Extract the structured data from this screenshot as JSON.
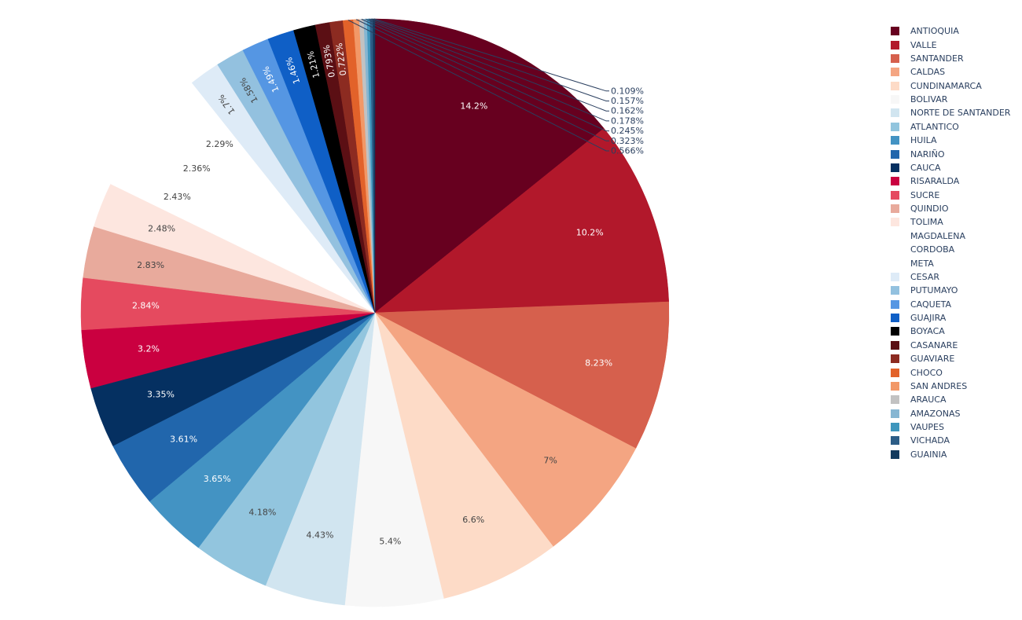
{
  "chart_data": {
    "type": "pie",
    "title": "",
    "legend_position": "right",
    "sort": "descending",
    "direction": "clockwise",
    "slices": [
      {
        "label": "ANTIOQUIA",
        "value": 14.2,
        "text": "14.2%",
        "color": "#67001f"
      },
      {
        "label": "VALLE",
        "value": 10.2,
        "text": "10.2%",
        "color": "#b2182b"
      },
      {
        "label": "SANTANDER",
        "value": 8.23,
        "text": "8.23%",
        "color": "#d6604d"
      },
      {
        "label": "CALDAS",
        "value": 7,
        "text": "7%",
        "color": "#f4a582"
      },
      {
        "label": "CUNDINAMARCA",
        "value": 6.6,
        "text": "6.6%",
        "color": "#fddbc7"
      },
      {
        "label": "BOLIVAR",
        "value": 5.4,
        "text": "5.4%",
        "color": "#f7f7f7"
      },
      {
        "label": "NORTE DE SANTANDER",
        "value": 4.43,
        "text": "4.43%",
        "color": "#d1e5f0"
      },
      {
        "label": "ATLANTICO",
        "value": 4.18,
        "text": "4.18%",
        "color": "#92c5de"
      },
      {
        "label": "HUILA",
        "value": 3.65,
        "text": "3.65%",
        "color": "#4393c3"
      },
      {
        "label": "NARIÑO",
        "value": 3.61,
        "text": "3.61%",
        "color": "#2166ac"
      },
      {
        "label": "CAUCA",
        "value": 3.35,
        "text": "3.35%",
        "color": "#053061"
      },
      {
        "label": "RISARALDA",
        "value": 3.2,
        "text": "3.2%",
        "color": "#ca0040"
      },
      {
        "label": "SUCRE",
        "value": 2.84,
        "text": "2.84%",
        "color": "#e54a5f"
      },
      {
        "label": "QUINDIO",
        "value": 2.83,
        "text": "2.83%",
        "color": "#e8aa9c"
      },
      {
        "label": "TOLIMA",
        "value": 2.48,
        "text": "2.48%",
        "color": "#fde6df"
      },
      {
        "label": "MAGDALENA",
        "value": 2.43,
        "text": "2.43%",
        "color": "#ffffff"
      },
      {
        "label": "CORDOBA",
        "value": 2.36,
        "text": "2.36%",
        "color": "#ffffff"
      },
      {
        "label": "META",
        "value": 2.29,
        "text": "2.29%",
        "color": "#ffffff"
      },
      {
        "label": "CESAR",
        "value": 1.7,
        "text": "1.7%",
        "color": "#deebf7"
      },
      {
        "label": "PUTUMAYO",
        "value": 1.58,
        "text": "1.58%",
        "color": "#93c1df"
      },
      {
        "label": "CAQUETA",
        "value": 1.49,
        "text": "1.49%",
        "color": "#5596e3"
      },
      {
        "label": "GUAJIRA",
        "value": 1.46,
        "text": "1.46%",
        "color": "#0f5fc6"
      },
      {
        "label": "BOYACA",
        "value": 1.21,
        "text": "1.21%",
        "color": "#000000"
      },
      {
        "label": "CASANARE",
        "value": 0.793,
        "text": "0.793%",
        "color": "#5b0f14"
      },
      {
        "label": "GUAVIARE",
        "value": 0.722,
        "text": "0.722%",
        "color": "#8c2b21"
      },
      {
        "label": "CHOCO",
        "value": 0.566,
        "text": "0.566%",
        "color": "#e2622a"
      },
      {
        "label": "SAN ANDRES",
        "value": 0.323,
        "text": "0.323%",
        "color": "#f29867"
      },
      {
        "label": "ARAUCA",
        "value": 0.245,
        "text": "0.245%",
        "color": "#c2c2c2"
      },
      {
        "label": "AMAZONAS",
        "value": 0.178,
        "text": "0.178%",
        "color": "#86b6d2"
      },
      {
        "label": "VAUPES",
        "value": 0.162,
        "text": "0.162%",
        "color": "#3f96bd"
      },
      {
        "label": "VICHADA",
        "value": 0.157,
        "text": "0.157%",
        "color": "#2c5d87"
      },
      {
        "label": "GUAINIA",
        "value": 0.109,
        "text": "0.109%",
        "color": "#123a5e"
      }
    ]
  }
}
